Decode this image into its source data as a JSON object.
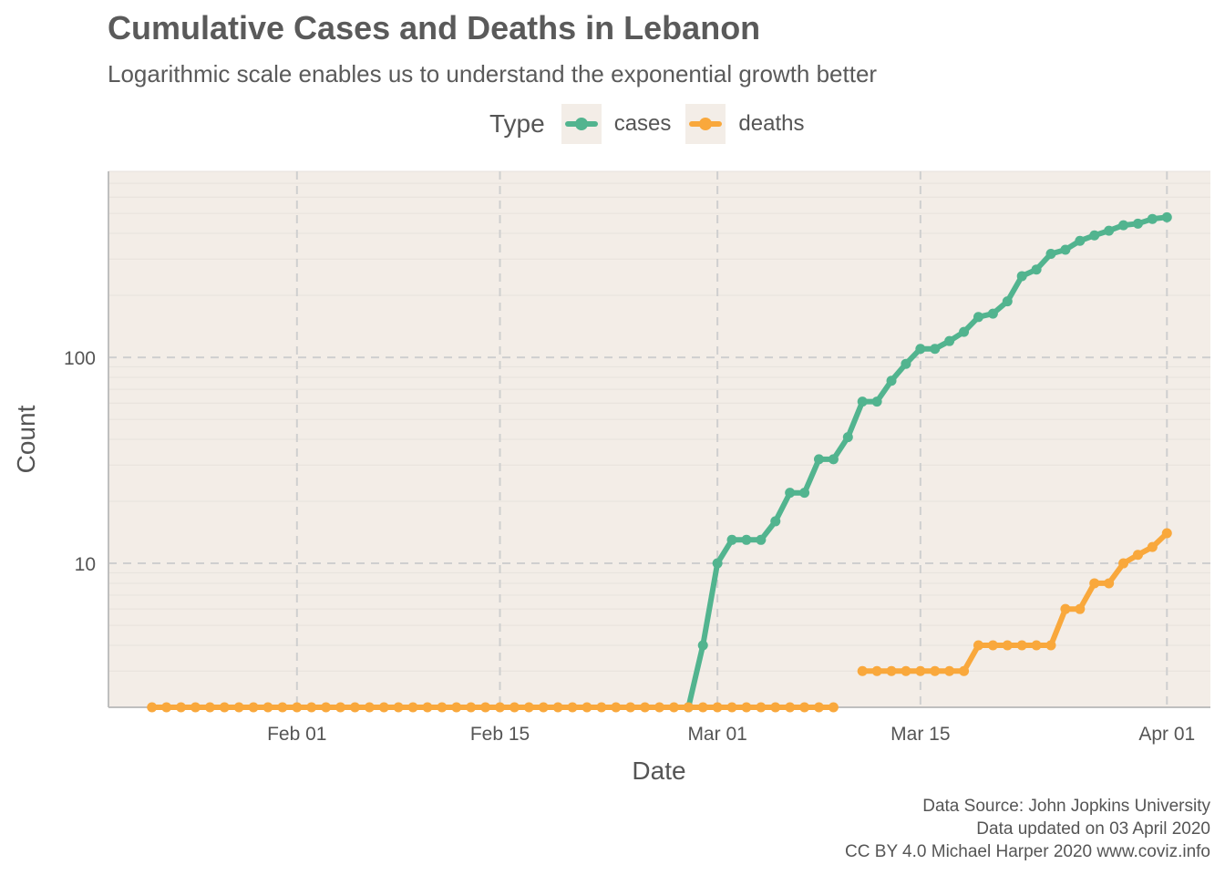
{
  "title": "Cumulative Cases and Deaths in Lebanon",
  "subtitle": "Logarithmic scale enables us to understand the exponential growth better",
  "legend": {
    "title": "Type",
    "items": [
      {
        "label": "cases",
        "color": "#52b48f"
      },
      {
        "label": "deaths",
        "color": "#f9a83c"
      }
    ]
  },
  "caption": [
    "Data Source: John Jopkins University",
    "Data updated on 03 April 2020",
    "CC BY 4.0 Michael Harper 2020 www.coviz.info"
  ],
  "chart_data": {
    "type": "line",
    "title": "Cumulative Cases and Deaths in Lebanon",
    "subtitle": "Logarithmic scale enables us to understand the exponential growth better",
    "xlabel": "Date",
    "ylabel": "Count",
    "y_scale": "log10",
    "ylim": [
      2,
      800
    ],
    "xlim": [
      "2020-01-19",
      "2020-04-04"
    ],
    "x_ticks": [
      {
        "date": "2020-02-01",
        "label": "Feb 01"
      },
      {
        "date": "2020-02-15",
        "label": "Feb 15"
      },
      {
        "date": "2020-03-01",
        "label": "Mar 01"
      },
      {
        "date": "2020-03-15",
        "label": "Mar 15"
      },
      {
        "date": "2020-04-01",
        "label": "Apr 01"
      }
    ],
    "y_ticks": [
      {
        "value": 10,
        "label": "10"
      },
      {
        "value": 100,
        "label": "100"
      }
    ],
    "legend_position": "top",
    "grid": true,
    "background": "#f3ede7",
    "series": [
      {
        "name": "cases",
        "color": "#52b48f",
        "points": [
          [
            "2020-02-28",
            2
          ],
          [
            "2020-02-29",
            4
          ],
          [
            "2020-03-01",
            10
          ],
          [
            "2020-03-02",
            13
          ],
          [
            "2020-03-03",
            13
          ],
          [
            "2020-03-04",
            13
          ],
          [
            "2020-03-05",
            16
          ],
          [
            "2020-03-06",
            22
          ],
          [
            "2020-03-07",
            22
          ],
          [
            "2020-03-08",
            32
          ],
          [
            "2020-03-09",
            32
          ],
          [
            "2020-03-10",
            41
          ],
          [
            "2020-03-11",
            61
          ],
          [
            "2020-03-12",
            61
          ],
          [
            "2020-03-13",
            77
          ],
          [
            "2020-03-14",
            93
          ],
          [
            "2020-03-15",
            110
          ],
          [
            "2020-03-16",
            110
          ],
          [
            "2020-03-17",
            120
          ],
          [
            "2020-03-18",
            133
          ],
          [
            "2020-03-19",
            157
          ],
          [
            "2020-03-20",
            163
          ],
          [
            "2020-03-21",
            187
          ],
          [
            "2020-03-22",
            248
          ],
          [
            "2020-03-23",
            267
          ],
          [
            "2020-03-24",
            318
          ],
          [
            "2020-03-25",
            333
          ],
          [
            "2020-03-26",
            368
          ],
          [
            "2020-03-27",
            391
          ],
          [
            "2020-03-28",
            412
          ],
          [
            "2020-03-29",
            438
          ],
          [
            "2020-03-30",
            446
          ],
          [
            "2020-03-31",
            470
          ],
          [
            "2020-04-01",
            479
          ]
        ]
      },
      {
        "name": "deaths",
        "color": "#f9a83c",
        "points": [
          [
            "2020-01-22",
            2
          ],
          [
            "2020-01-23",
            2
          ],
          [
            "2020-01-24",
            2
          ],
          [
            "2020-01-25",
            2
          ],
          [
            "2020-01-26",
            2
          ],
          [
            "2020-01-27",
            2
          ],
          [
            "2020-01-28",
            2
          ],
          [
            "2020-01-29",
            2
          ],
          [
            "2020-01-30",
            2
          ],
          [
            "2020-01-31",
            2
          ],
          [
            "2020-02-01",
            2
          ],
          [
            "2020-02-02",
            2
          ],
          [
            "2020-02-03",
            2
          ],
          [
            "2020-02-04",
            2
          ],
          [
            "2020-02-05",
            2
          ],
          [
            "2020-02-06",
            2
          ],
          [
            "2020-02-07",
            2
          ],
          [
            "2020-02-08",
            2
          ],
          [
            "2020-02-09",
            2
          ],
          [
            "2020-02-10",
            2
          ],
          [
            "2020-02-11",
            2
          ],
          [
            "2020-02-12",
            2
          ],
          [
            "2020-02-13",
            2
          ],
          [
            "2020-02-14",
            2
          ],
          [
            "2020-02-15",
            2
          ],
          [
            "2020-02-16",
            2
          ],
          [
            "2020-02-17",
            2
          ],
          [
            "2020-02-18",
            2
          ],
          [
            "2020-02-19",
            2
          ],
          [
            "2020-02-20",
            2
          ],
          [
            "2020-02-21",
            2
          ],
          [
            "2020-02-22",
            2
          ],
          [
            "2020-02-23",
            2
          ],
          [
            "2020-02-24",
            2
          ],
          [
            "2020-02-25",
            2
          ],
          [
            "2020-02-26",
            2
          ],
          [
            "2020-02-27",
            2
          ],
          [
            "2020-02-28",
            2
          ],
          [
            "2020-02-29",
            2
          ],
          [
            "2020-03-01",
            2
          ],
          [
            "2020-03-02",
            2
          ],
          [
            "2020-03-03",
            2
          ],
          [
            "2020-03-04",
            2
          ],
          [
            "2020-03-05",
            2
          ],
          [
            "2020-03-06",
            2
          ],
          [
            "2020-03-07",
            2
          ],
          [
            "2020-03-08",
            2
          ],
          [
            "2020-03-09",
            2
          ],
          [
            "2020-03-11",
            3
          ],
          [
            "2020-03-12",
            3
          ],
          [
            "2020-03-13",
            3
          ],
          [
            "2020-03-14",
            3
          ],
          [
            "2020-03-15",
            3
          ],
          [
            "2020-03-16",
            3
          ],
          [
            "2020-03-17",
            3
          ],
          [
            "2020-03-18",
            3
          ],
          [
            "2020-03-19",
            4
          ],
          [
            "2020-03-20",
            4
          ],
          [
            "2020-03-21",
            4
          ],
          [
            "2020-03-22",
            4
          ],
          [
            "2020-03-23",
            4
          ],
          [
            "2020-03-24",
            4
          ],
          [
            "2020-03-25",
            6
          ],
          [
            "2020-03-26",
            6
          ],
          [
            "2020-03-27",
            8
          ],
          [
            "2020-03-28",
            8
          ],
          [
            "2020-03-29",
            10
          ],
          [
            "2020-03-30",
            11
          ],
          [
            "2020-03-31",
            12
          ],
          [
            "2020-04-01",
            14
          ]
        ]
      }
    ]
  }
}
